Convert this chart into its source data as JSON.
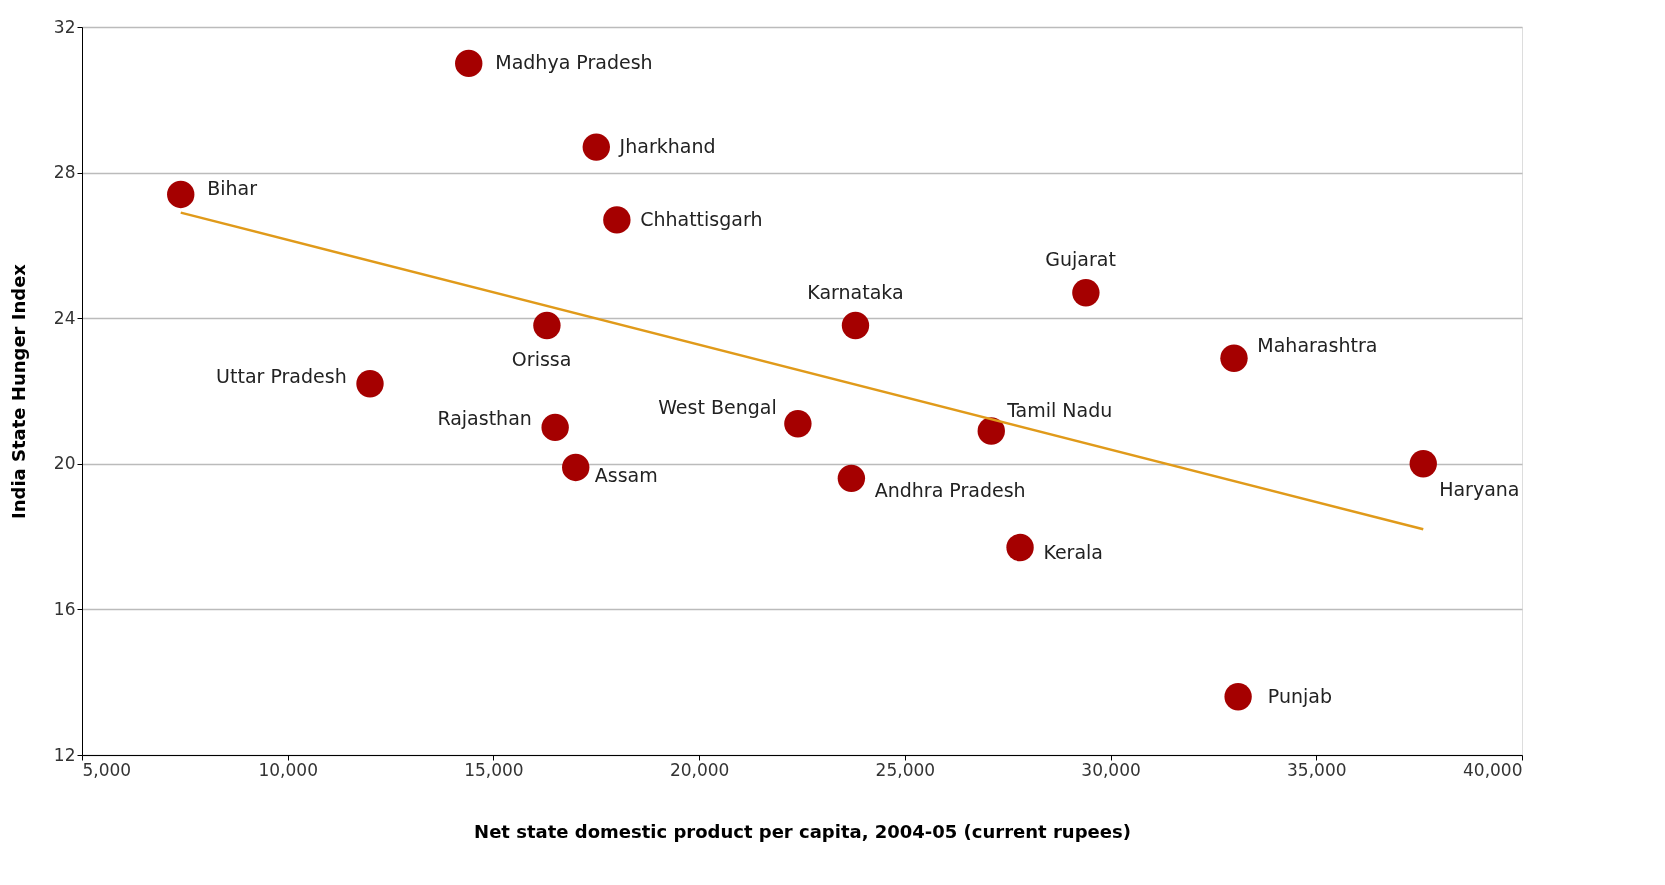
{
  "chart_data": {
    "type": "scatter",
    "xlabel": "Net state domestic product per capita, 2004-05 (current rupees)",
    "ylabel": "India State Hunger Index",
    "series": [
      {
        "type": "scatter",
        "marker": "circle",
        "color": "#a50000",
        "x": [
          14400,
          17500,
          7400,
          18000,
          29400,
          23800,
          16300,
          33000,
          12000,
          16500,
          22400,
          27100,
          17000,
          23700,
          37600,
          27800,
          33100
        ],
        "values": [
          31.0,
          28.7,
          27.4,
          26.7,
          24.7,
          23.8,
          23.8,
          22.9,
          22.2,
          21.0,
          21.1,
          20.9,
          19.9,
          19.6,
          20.0,
          17.7,
          13.6
        ]
      },
      {
        "type": "line",
        "color": "#e09a1a",
        "x": [
          7400,
          37600
        ],
        "values": [
          26.9,
          18.2
        ]
      }
    ],
    "annotations": [
      {
        "text": "Madhya Pradesh",
        "x": 14400,
        "y": 31.0
      },
      {
        "text": "Jharkhand",
        "x": 17500,
        "y": 28.7
      },
      {
        "text": "Bihar",
        "x": 7400,
        "y": 27.4
      },
      {
        "text": "Chhattisgarh",
        "x": 18000,
        "y": 26.7
      },
      {
        "text": "Gujarat",
        "x": 29400,
        "y": 24.7
      },
      {
        "text": "Karnataka",
        "x": 23800,
        "y": 23.8
      },
      {
        "text": "Orissa",
        "x": 16300,
        "y": 23.8
      },
      {
        "text": "Maharashtra",
        "x": 33000,
        "y": 22.9
      },
      {
        "text": "Uttar Pradesh",
        "x": 12000,
        "y": 22.2
      },
      {
        "text": "Rajasthan",
        "x": 16500,
        "y": 21.0
      },
      {
        "text": "West Bengal",
        "x": 22400,
        "y": 21.1
      },
      {
        "text": "Tamil Nadu",
        "x": 27100,
        "y": 20.9
      },
      {
        "text": "Assam",
        "x": 17000,
        "y": 19.9
      },
      {
        "text": "Andhra Pradesh",
        "x": 23700,
        "y": 19.6
      },
      {
        "text": "Haryana",
        "x": 37600,
        "y": 20.0
      },
      {
        "text": "Kerala",
        "x": 27800,
        "y": 17.7
      },
      {
        "text": "Punjab",
        "x": 33100,
        "y": 13.6
      }
    ],
    "xlim": [
      5000,
      40000
    ],
    "xticks": [
      {
        "value": 5000,
        "label": "5,000"
      },
      {
        "value": 10000,
        "label": "10,000"
      },
      {
        "value": 15000,
        "label": "15,000"
      },
      {
        "value": 20000,
        "label": "20,000"
      },
      {
        "value": 25000,
        "label": "25,000"
      },
      {
        "value": 30000,
        "label": "30,000"
      },
      {
        "value": 35000,
        "label": "35,000"
      },
      {
        "value": 40000,
        "label": "40,000"
      }
    ],
    "ylim": [
      12,
      32
    ],
    "yticks": [
      12,
      16,
      20,
      24,
      28,
      32
    ],
    "grid": "y",
    "line_style": "solid"
  }
}
